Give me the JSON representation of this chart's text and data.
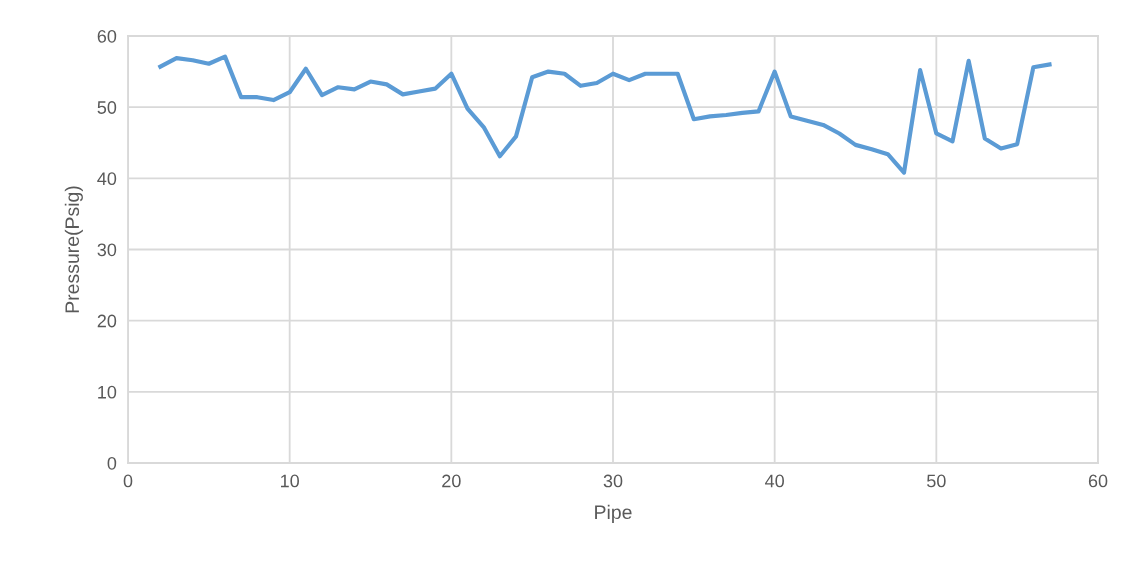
{
  "chart_data": {
    "type": "line",
    "xlabel": "Pipe",
    "ylabel": "Pressure(Psig)",
    "x": [
      2,
      3,
      4,
      5,
      6,
      7,
      8,
      9,
      10,
      11,
      12,
      13,
      14,
      15,
      16,
      17,
      18,
      19,
      20,
      21,
      22,
      23,
      24,
      25,
      26,
      27,
      28,
      29,
      30,
      31,
      32,
      33,
      34,
      35,
      36,
      37,
      38,
      39,
      40,
      41,
      42,
      43,
      44,
      45,
      46,
      47,
      48,
      49,
      50,
      51,
      52,
      53,
      54,
      55,
      56,
      57
    ],
    "series": [
      {
        "color": "#5b9bd5",
        "values": [
          55.7,
          56.9,
          56.6,
          56.1,
          57.1,
          51.4,
          51.4,
          51.0,
          52.1,
          55.4,
          51.7,
          52.8,
          52.5,
          53.6,
          53.2,
          51.8,
          52.2,
          52.6,
          54.7,
          49.8,
          47.2,
          43.1,
          45.9,
          54.2,
          55.0,
          54.7,
          53.0,
          53.4,
          54.7,
          53.8,
          54.7,
          54.7,
          54.7,
          48.3,
          48.7,
          48.9,
          49.2,
          49.4,
          55.0,
          48.7,
          48.1,
          47.5,
          46.3,
          44.7,
          44.1,
          43.4,
          40.8,
          55.2,
          46.3,
          45.2,
          56.5,
          45.6,
          44.2,
          44.8,
          55.6,
          56.0
        ]
      }
    ],
    "xlim": [
      0,
      60
    ],
    "xticks": [
      0,
      10,
      20,
      30,
      40,
      50,
      60
    ],
    "ylim": [
      0,
      60
    ],
    "yticks": [
      0,
      10,
      20,
      30,
      40,
      50,
      60
    ],
    "grid": true,
    "marker": "none",
    "line_style": "solid"
  }
}
